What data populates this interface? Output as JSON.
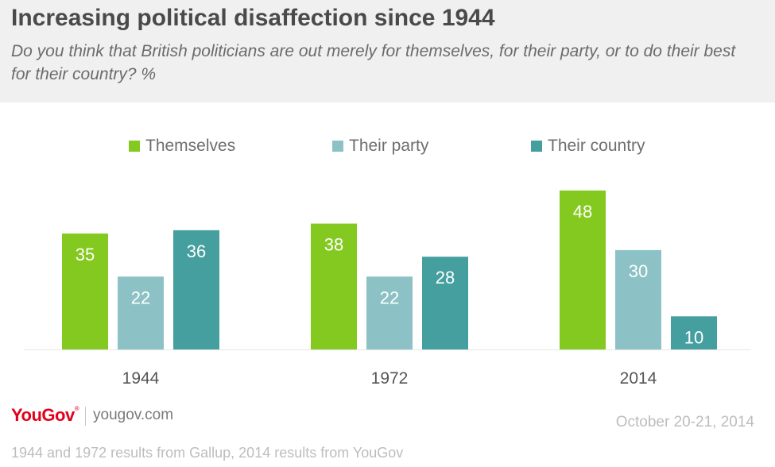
{
  "header": {
    "title": "Increasing political disaffection since 1944",
    "subtitle": "Do you think that British politicians are out merely for themselves, for their party,  or to do their best for their country? %"
  },
  "legend": [
    {
      "label": "Themselves",
      "color": "#84c91f"
    },
    {
      "label": "Their party",
      "color": "#8cc2c5"
    },
    {
      "label": "Their country",
      "color": "#469f9f"
    }
  ],
  "chart_data": {
    "type": "bar",
    "categories": [
      "1944",
      "1972",
      "2014"
    ],
    "series": [
      {
        "name": "Themselves",
        "values": [
          35,
          38,
          48
        ],
        "color": "#84c91f"
      },
      {
        "name": "Their party",
        "values": [
          22,
          22,
          30
        ],
        "color": "#8cc2c5"
      },
      {
        "name": "Their country",
        "values": [
          36,
          28,
          10
        ],
        "color": "#469f9f"
      }
    ],
    "ylim": [
      0,
      50
    ],
    "grid": false,
    "legend_position": "top"
  },
  "footer": {
    "logo": "YouGov",
    "site": "yougov.com",
    "date": "October 20-21, 2014",
    "source": "1944 and 1972 results from Gallup, 2014 results from YouGov"
  }
}
